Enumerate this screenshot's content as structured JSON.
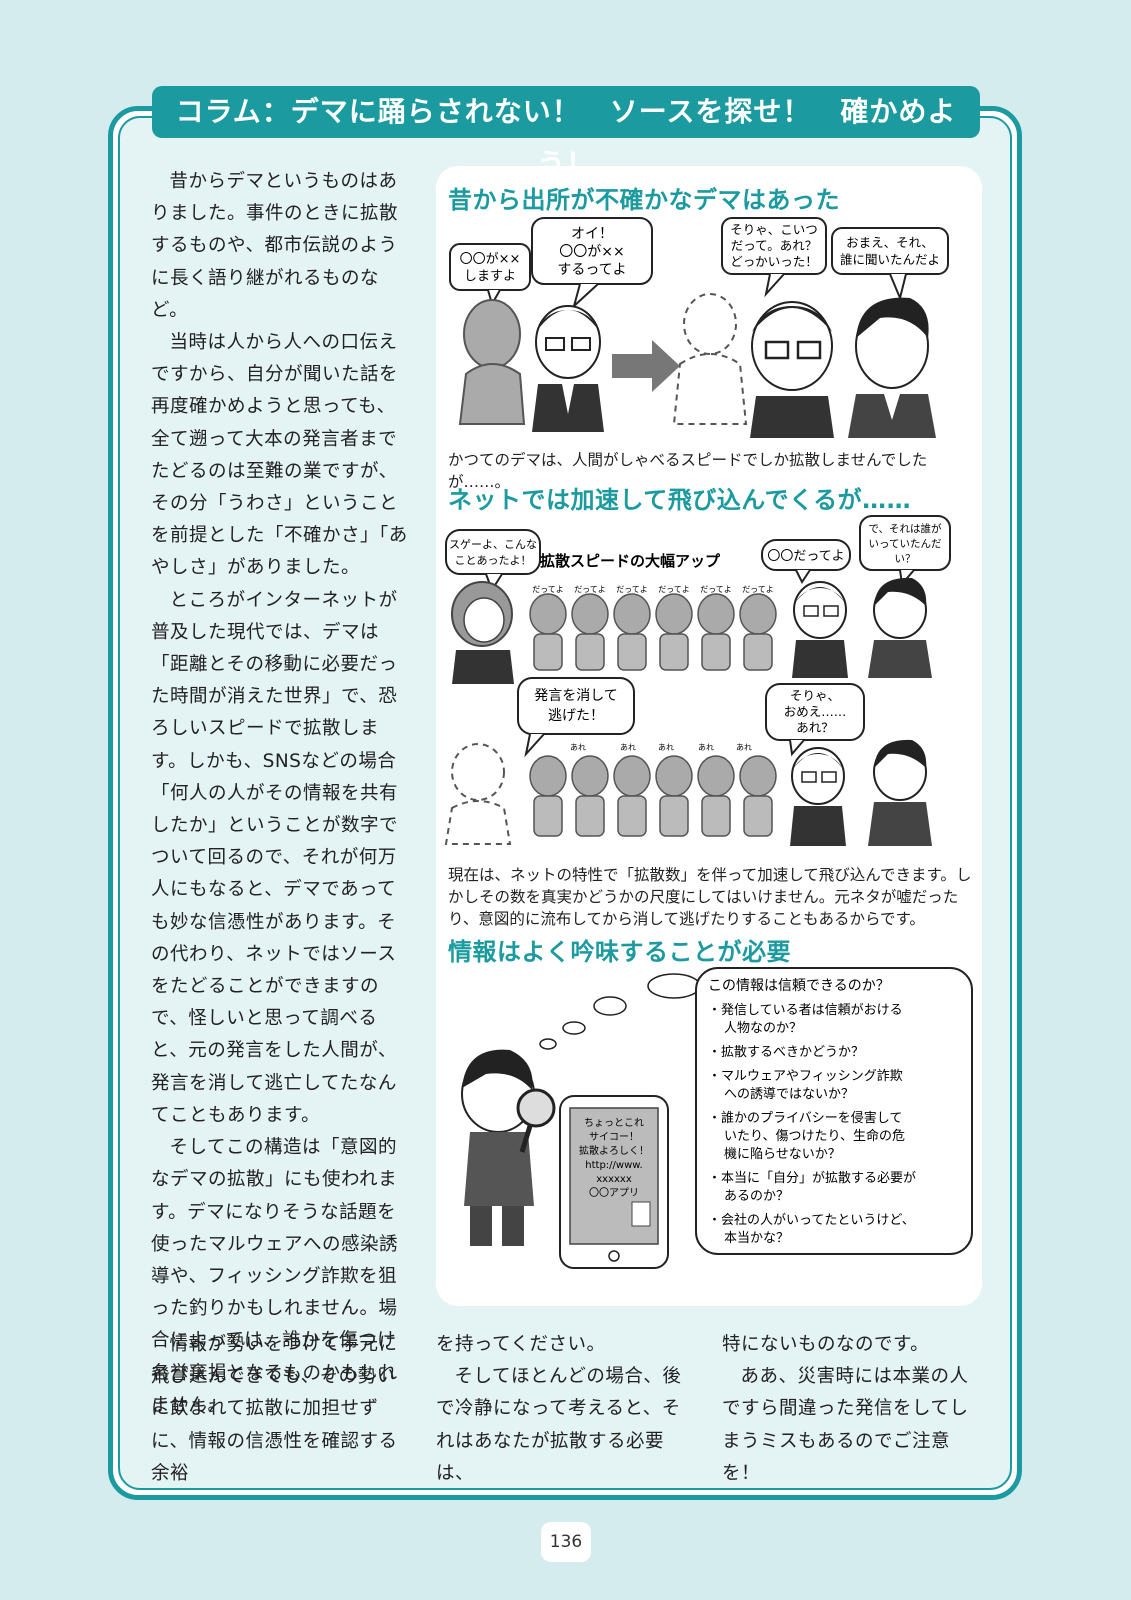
{
  "title": "コラム：デマに踊らされない！　ソースを探せ！　確かめよう！",
  "left_column": [
    "昔からデマというものはありました。事件のときに拡散するものや、都市伝説のように長く語り継がれるものなど。",
    "当時は人から人への口伝えですから、自分が聞いた話を再度確かめようと思っても、全て遡って大本の発言者までたどるのは至難の業ですが、その分「うわさ」ということを前提とした「不確かさ」「あやしさ」がありました。",
    "ところがインターネットが普及した現代では、デマは「距離とその移動に必要だった時間が消えた世界」で、恐ろしいスピードで拡散します。しかも、SNSなどの場合「何人の人がその情報を共有したか」ということが数字でついて回るので、それが何万人にもなると、デマであっても妙な信憑性があります。その代わり、ネットではソースをたどることができますので、怪しいと思って調べると、元の発言をした人間が、発言を消して逃亡してたなんてこともあります。",
    "そしてこの構造は「意図的なデマの拡散」にも使われます。デマになりそうな話題を使ったマルウェアへの感染誘導や、フィッシング詐欺を狙った釣りかもしれません。場合によっては、誰かを傷つけ名誉棄損となるものかもしれません。"
  ],
  "bottom": {
    "col1": "情報が勢いをつけて手元に飛び込んできても、その勢いに飲まれて拡散に加担せずに、情報の信憑性を確認する余裕",
    "col2_line1": "を持ってください。",
    "col2_para": "そしてほとんどの場合、後で冷静になって考えると、それはあなたが拡散する必要は、",
    "col3_line1": "特にないものなのです。",
    "col3_para": "ああ、災害時には本業の人ですら間違った発信をしてしまうミスもあるのでご注意を！"
  },
  "section1": {
    "heading": "昔から出所が不確かなデマはあった",
    "bubble_a": [
      "〇〇が××",
      "しますよ"
    ],
    "bubble_b": [
      "オイ！",
      "〇〇が××",
      "するってよ"
    ],
    "bubble_c": [
      "そりゃ、こいつ",
      "だって。あれ？",
      "どっかいった！"
    ],
    "bubble_d": [
      "おまえ、それ、",
      "誰に聞いたんだよ"
    ],
    "caption": "かつてのデマは、人間がしゃべるスピードでしか拡散しませんでしたが……。"
  },
  "section2": {
    "heading": "ネットでは加速して飛び込んでくるが……",
    "label": "拡散スピードの大幅アップ",
    "bubble_a": [
      "スゲーよ、こんな",
      "ことあったよ！"
    ],
    "bubble_b": [
      "〇〇だってよ"
    ],
    "bubble_c": [
      "で、それは誰が",
      "いっていたんだ",
      "い？"
    ],
    "bubble_d": [
      "発言を消して",
      "逃げた！"
    ],
    "bubble_e": [
      "そりゃ、",
      "おめえ……",
      "あれ？"
    ],
    "crowd_top": "だってよ",
    "crowd_bottom": "あれ",
    "caption": "現在は、ネットの特性で「拡散数」を伴って加速して飛び込んできます。しかしその数を真実かどうかの尺度にしてはいけません。元ネタが嘘だったり、意図的に流布してから消して逃げたりすることもあるからです。"
  },
  "section3": {
    "heading": "情報はよく吟味することが必要",
    "checklist_title": "この情報は信頼できるのか？",
    "checklist": [
      [
        "発信している者は信頼がおける",
        "人物なのか？"
      ],
      [
        "拡散するべきかどうか？"
      ],
      [
        "マルウェアやフィッシング詐欺",
        "への誘導ではないか？"
      ],
      [
        "誰かのプライバシーを侵害して",
        "いたり、傷つけたり、生命の危",
        "機に陥らせないか？"
      ],
      [
        "本当に「自分」が拡散する必要が",
        "あるのか？"
      ],
      [
        "会社の人がいってたというけど、",
        "本当かな？"
      ]
    ],
    "phone_text": [
      "ちょっとこれ",
      "サイコー！",
      "拡散よろしく！",
      "http://www.",
      "xxxxxx",
      "〇〇アプリ"
    ]
  },
  "page_number": "136"
}
